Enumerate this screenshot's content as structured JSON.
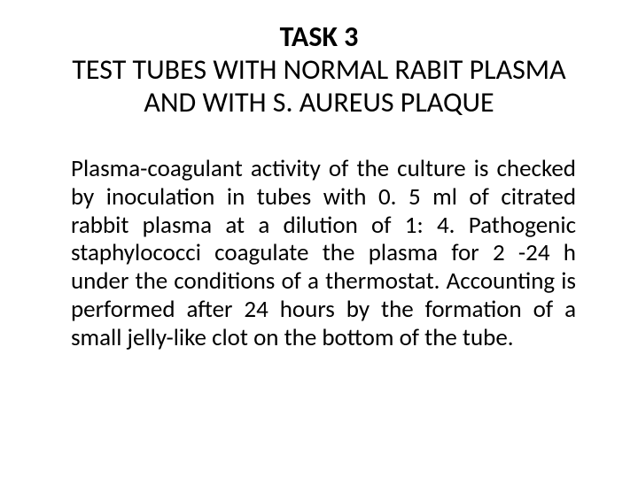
{
  "slide": {
    "task_label": "TASK 3",
    "title": "TEST TUBES WITH NORMAL RABIT PLASMA AND WITH S. AUREUS PLAQUE",
    "body": "Plasma-coagulant activity of the culture is checked by inoculation in tubes with 0. 5 ml of citrated rabbit plasma at a dilution of 1: 4. Pathogenic staphylococci coagulate the plasma for 2 -24 h under the conditions of a thermostat. Accounting is performed after 24 hours by the formation of a small jelly-like clot on the bottom of the tube."
  },
  "style": {
    "background_color": "#ffffff",
    "text_color": "#000000",
    "font_family": "Calibri",
    "task_label_fontsize": 32,
    "task_label_fontweight": 700,
    "title_fontsize": 32,
    "title_fontweight": 400,
    "body_fontsize": 27,
    "body_fontweight": 400,
    "body_align": "justify",
    "title_align": "center"
  }
}
